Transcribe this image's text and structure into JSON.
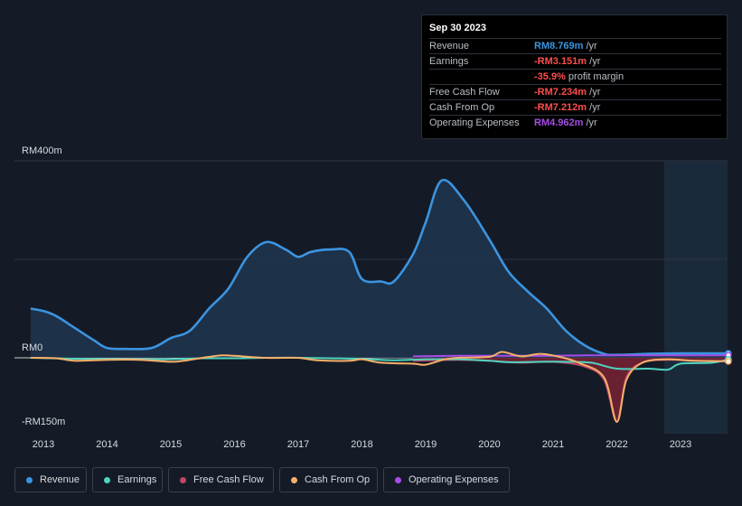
{
  "chart_data": {
    "type": "area",
    "currency_axis": {
      "ylim": [
        -150,
        400
      ],
      "tick_labels": [
        {
          "value": 400,
          "label": "RM400m"
        },
        {
          "value": 0,
          "label": "RM0"
        },
        {
          "value": -150,
          "label": "-RM150m"
        }
      ]
    },
    "x_axis": {
      "xlim": [
        2012.8,
        2023.75
      ],
      "ticks": [
        "2013",
        "2014",
        "2015",
        "2016",
        "2017",
        "2018",
        "2019",
        "2020",
        "2021",
        "2022",
        "2023"
      ]
    },
    "past_data_from": 2022.75,
    "series": [
      {
        "name": "Revenue",
        "color": "#3b94e0",
        "filled": true,
        "points": [
          [
            2012.8,
            100
          ],
          [
            2013.0,
            95
          ],
          [
            2013.2,
            85
          ],
          [
            2013.5,
            60
          ],
          [
            2013.8,
            35
          ],
          [
            2014.0,
            20
          ],
          [
            2014.3,
            18
          ],
          [
            2014.7,
            20
          ],
          [
            2015.0,
            40
          ],
          [
            2015.3,
            55
          ],
          [
            2015.6,
            100
          ],
          [
            2015.9,
            140
          ],
          [
            2016.2,
            205
          ],
          [
            2016.5,
            235
          ],
          [
            2016.8,
            220
          ],
          [
            2017.0,
            205
          ],
          [
            2017.2,
            215
          ],
          [
            2017.5,
            220
          ],
          [
            2017.8,
            215
          ],
          [
            2018.0,
            160
          ],
          [
            2018.3,
            155
          ],
          [
            2018.5,
            155
          ],
          [
            2018.8,
            210
          ],
          [
            2019.0,
            275
          ],
          [
            2019.25,
            360
          ],
          [
            2019.6,
            320
          ],
          [
            2020.0,
            240
          ],
          [
            2020.3,
            175
          ],
          [
            2020.6,
            135
          ],
          [
            2020.9,
            100
          ],
          [
            2021.2,
            55
          ],
          [
            2021.5,
            25
          ],
          [
            2021.8,
            8
          ],
          [
            2022.0,
            6
          ],
          [
            2022.5,
            8
          ],
          [
            2023.0,
            9
          ],
          [
            2023.5,
            9
          ],
          [
            2023.75,
            9
          ]
        ]
      },
      {
        "name": "Earnings",
        "color": "#4ed4c0",
        "filled": false,
        "points": [
          [
            2012.8,
            0
          ],
          [
            2013.5,
            -2
          ],
          [
            2014.5,
            -3
          ],
          [
            2015.0,
            -3
          ],
          [
            2015.5,
            -1
          ],
          [
            2016.0,
            -1
          ],
          [
            2016.5,
            0
          ],
          [
            2017.0,
            0
          ],
          [
            2017.5,
            -1
          ],
          [
            2018.0,
            -2
          ],
          [
            2018.5,
            -5
          ],
          [
            2019.0,
            -3
          ],
          [
            2019.5,
            -3
          ],
          [
            2020.0,
            -6
          ],
          [
            2020.3,
            -9
          ],
          [
            2020.8,
            -8
          ],
          [
            2021.2,
            -8
          ],
          [
            2021.6,
            -10
          ],
          [
            2022.0,
            -22
          ],
          [
            2022.5,
            -22
          ],
          [
            2022.8,
            -24
          ],
          [
            2023.0,
            -12
          ],
          [
            2023.5,
            -10
          ],
          [
            2023.75,
            -3
          ]
        ]
      },
      {
        "name": "Free Cash Flow",
        "color": "#c0446a",
        "filled": true,
        "points": [
          [
            2018.8,
            -6
          ],
          [
            2019.5,
            -4
          ],
          [
            2020.0,
            -6
          ],
          [
            2020.5,
            -10
          ],
          [
            2021.0,
            -8
          ],
          [
            2021.5,
            -18
          ],
          [
            2021.8,
            -45
          ],
          [
            2022.0,
            -130
          ],
          [
            2022.15,
            -40
          ],
          [
            2022.4,
            -10
          ],
          [
            2022.8,
            -4
          ],
          [
            2023.2,
            -6
          ],
          [
            2023.75,
            -7
          ]
        ]
      },
      {
        "name": "Cash From Op",
        "color": "#f5b06a",
        "filled": false,
        "points": [
          [
            2012.8,
            0
          ],
          [
            2013.2,
            -1
          ],
          [
            2013.5,
            -6
          ],
          [
            2014.0,
            -4
          ],
          [
            2014.5,
            -4
          ],
          [
            2015.0,
            -8
          ],
          [
            2015.2,
            -6
          ],
          [
            2015.5,
            0
          ],
          [
            2015.8,
            5
          ],
          [
            2016.0,
            4
          ],
          [
            2016.5,
            0
          ],
          [
            2017.0,
            0
          ],
          [
            2017.3,
            -5
          ],
          [
            2017.8,
            -6
          ],
          [
            2018.0,
            -3
          ],
          [
            2018.3,
            -10
          ],
          [
            2018.8,
            -12
          ],
          [
            2019.0,
            -14
          ],
          [
            2019.3,
            -3
          ],
          [
            2019.5,
            0
          ],
          [
            2020.0,
            2
          ],
          [
            2020.2,
            12
          ],
          [
            2020.5,
            3
          ],
          [
            2020.8,
            8
          ],
          [
            2021.1,
            2
          ],
          [
            2021.4,
            -10
          ],
          [
            2021.8,
            -40
          ],
          [
            2022.0,
            -130
          ],
          [
            2022.15,
            -45
          ],
          [
            2022.4,
            -10
          ],
          [
            2022.8,
            -3
          ],
          [
            2023.2,
            -6
          ],
          [
            2023.75,
            -7
          ]
        ]
      },
      {
        "name": "Operating Expenses",
        "color": "#a64de6",
        "filled": false,
        "points": [
          [
            2018.8,
            3
          ],
          [
            2019.5,
            4
          ],
          [
            2020.0,
            4
          ],
          [
            2020.5,
            4
          ],
          [
            2021.0,
            4
          ],
          [
            2021.5,
            5
          ],
          [
            2022.0,
            5
          ],
          [
            2022.5,
            5
          ],
          [
            2023.0,
            5
          ],
          [
            2023.75,
            5
          ]
        ]
      }
    ]
  },
  "tooltip": {
    "date": "Sep 30 2023",
    "rows": [
      {
        "label": "Revenue",
        "value": "RM8.769m",
        "unit": "/yr",
        "color": "#3b94e0"
      },
      {
        "label": "Earnings",
        "value": "-RM3.151m",
        "unit": "/yr",
        "color": "#ff4d4d"
      },
      {
        "label": "",
        "value": "-35.9%",
        "unit": "profit margin",
        "color": "#ff4d4d"
      },
      {
        "label": "Free Cash Flow",
        "value": "-RM7.234m",
        "unit": "/yr",
        "color": "#ff4d4d"
      },
      {
        "label": "Cash From Op",
        "value": "-RM7.212m",
        "unit": "/yr",
        "color": "#ff4d4d"
      },
      {
        "label": "Operating Expenses",
        "value": "RM4.962m",
        "unit": "/yr",
        "color": "#a64de6"
      }
    ]
  },
  "legend": [
    {
      "label": "Revenue",
      "color": "#3b94e0"
    },
    {
      "label": "Earnings",
      "color": "#4ed4c0"
    },
    {
      "label": "Free Cash Flow",
      "color": "#c0446a"
    },
    {
      "label": "Cash From Op",
      "color": "#f5b06a"
    },
    {
      "label": "Operating Expenses",
      "color": "#a64de6"
    }
  ]
}
